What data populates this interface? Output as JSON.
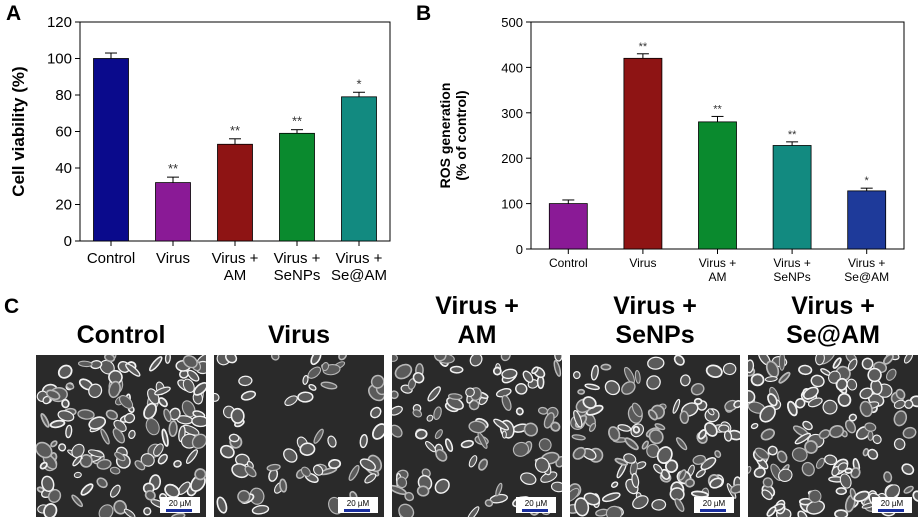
{
  "panels": {
    "a": "A",
    "b": "B",
    "c": "C"
  },
  "chart_data": [
    {
      "type": "bar",
      "panel": "A",
      "categories": [
        "Control",
        "Virus",
        "Virus + AM",
        "Virus + SeNPs",
        "Virus + Se@AM"
      ],
      "category_lines": [
        [
          "Control"
        ],
        [
          "Virus"
        ],
        [
          "Virus +",
          "AM"
        ],
        [
          "Virus +",
          "SeNPs"
        ],
        [
          "Virus +",
          "Se@AM"
        ]
      ],
      "values": [
        100,
        32,
        53,
        59,
        79
      ],
      "errors": [
        3,
        3,
        3,
        2,
        2.5
      ],
      "significance": [
        "",
        "**",
        "**",
        "**",
        "*"
      ],
      "colors": [
        "#0a0a8c",
        "#8a1a96",
        "#8e1414",
        "#0a8a2e",
        "#128a80"
      ],
      "xlabel": "",
      "ylabel": "Cell viability (%)",
      "ylim": [
        0,
        120
      ],
      "yticks": [
        0,
        20,
        40,
        60,
        80,
        100,
        120
      ],
      "grid": false,
      "legend": "none"
    },
    {
      "type": "bar",
      "panel": "B",
      "categories": [
        "Control",
        "Virus",
        "Virus + AM",
        "Virus + SeNPs",
        "Virus + Se@AM"
      ],
      "category_lines": [
        [
          "Control"
        ],
        [
          "Virus"
        ],
        [
          "Virus +",
          "AM"
        ],
        [
          "Virus +",
          "SeNPs"
        ],
        [
          "Virus +",
          "Se@AM"
        ]
      ],
      "values": [
        100,
        420,
        280,
        228,
        128
      ],
      "errors": [
        8,
        10,
        12,
        8,
        6
      ],
      "significance": [
        "",
        "**",
        "**",
        "**",
        "*"
      ],
      "colors": [
        "#8a1a96",
        "#8e1414",
        "#0a8a2e",
        "#128a80",
        "#1e3a9a"
      ],
      "xlabel": "",
      "ylabel": [
        "ROS generation",
        "(% of control)"
      ],
      "ylim": [
        0,
        500
      ],
      "yticks": [
        0,
        100,
        200,
        300,
        400,
        500
      ],
      "grid": false,
      "legend": "none"
    }
  ],
  "micrographs": [
    {
      "title": [
        "Control"
      ],
      "scale": "20 µM",
      "density": 0.95
    },
    {
      "title": [
        "Virus"
      ],
      "scale": "20 µM",
      "density": 0.45
    },
    {
      "title": [
        "Virus +",
        "AM"
      ],
      "scale": "20 µM",
      "density": 0.7
    },
    {
      "title": [
        "Virus +",
        "SeNPs"
      ],
      "scale": "20 µM",
      "density": 0.8
    },
    {
      "title": [
        "Virus +",
        "Se@AM"
      ],
      "scale": "20 µM",
      "density": 0.95
    }
  ]
}
